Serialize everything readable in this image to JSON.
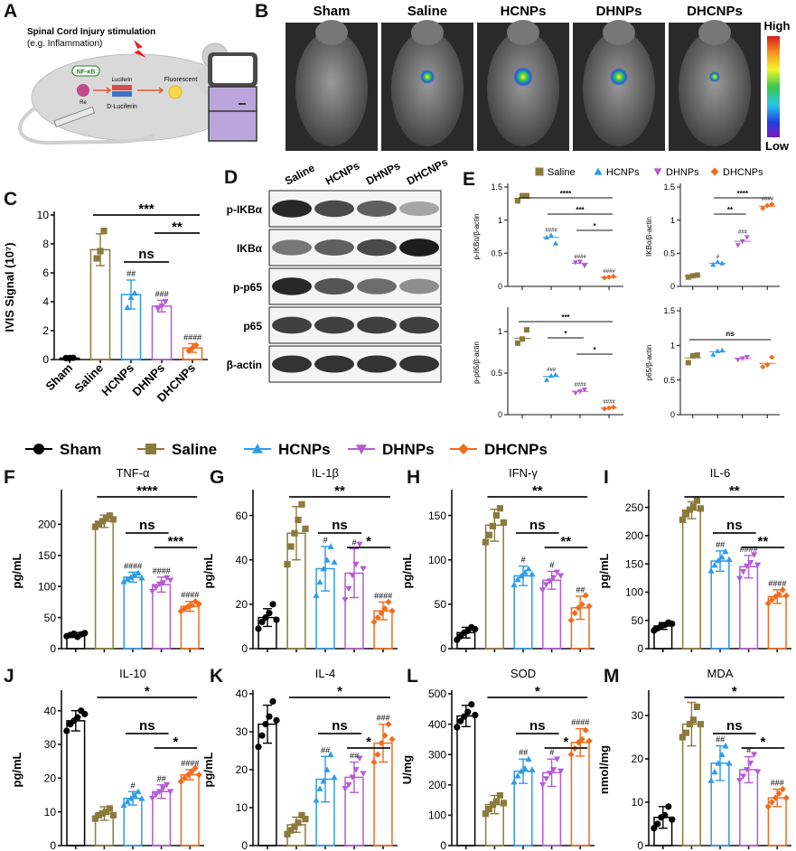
{
  "panel_letters": {
    "A": "A",
    "B": "B",
    "C": "C",
    "D": "D",
    "E": "E",
    "F": "F",
    "G": "G",
    "H": "H",
    "I": "I",
    "J": "J",
    "K": "K",
    "L": "L",
    "M": "M"
  },
  "groups": [
    "Sham",
    "Saline",
    "HCNPs",
    "DHNPs",
    "DHCNPs"
  ],
  "colors": {
    "Sham": "#000000",
    "Saline": "#8B7A3C",
    "HCNPs": "#2E9BE8",
    "DHNPs": "#B55BD6",
    "DHCNPs": "#F26B1D"
  },
  "schematic": {
    "line1": "Spinal Cord Injury stimulation",
    "line2": "(e.g. Inflammation)",
    "nfkb": "NF-κB",
    "re": "Re",
    "luciferin": "Luciferin",
    "d_luciferin": "D-Luciferin",
    "fluorescent": "Fluorescent"
  },
  "imaging": {
    "labels": [
      "Sham",
      "Saline",
      "HCNPs",
      "DHNPs",
      "DHCNPs"
    ],
    "scale_high": "High",
    "scale_low": "Low"
  },
  "western": {
    "lanes": [
      "Saline",
      "HCNPs",
      "DHNPs",
      "DHCNPs"
    ],
    "bands": [
      "p-IKBα",
      "IKBα",
      "p-p65",
      "p65",
      "β-actin"
    ]
  },
  "chart_data": [
    {
      "id": "C",
      "type": "bar",
      "ylabel": "IVIS Signal (10⁷)",
      "ylim": [
        0,
        10
      ],
      "yticks": [
        0,
        2,
        4,
        6,
        8,
        10
      ],
      "categories": [
        "Sham",
        "Saline",
        "HCNPs",
        "DHNPs",
        "DHCNPs"
      ],
      "values": [
        0.1,
        7.6,
        4.5,
        3.7,
        0.8
      ],
      "errors": [
        0.05,
        1.1,
        1.0,
        0.4,
        0.3
      ],
      "points": [
        [
          0.1,
          0.1,
          0.12
        ],
        [
          7.0,
          7.5,
          8.9
        ],
        [
          3.6,
          4.3,
          4.6
        ],
        [
          3.5,
          3.7,
          4.0
        ],
        [
          0.6,
          0.8,
          1.0
        ]
      ],
      "annot": [
        null,
        null,
        "##",
        "###",
        "####"
      ],
      "brackets": [
        {
          "from": 3,
          "to": 4,
          "label": "**"
        },
        {
          "from": 1,
          "to": 4,
          "label": "***"
        },
        {
          "from": 2,
          "to": 3,
          "label": "ns"
        }
      ]
    },
    {
      "id": "E1",
      "type": "scatter",
      "ylabel": "p-IKBα/β-actin",
      "ylim": [
        0,
        1.5
      ],
      "yticks": [
        0,
        0.5,
        1,
        1.5
      ],
      "categories": [
        "Saline",
        "HCNPs",
        "DHNPs",
        "DHCNPs"
      ],
      "values": [
        1.33,
        0.74,
        0.35,
        0.14
      ],
      "points": [
        [
          1.29,
          1.37,
          1.37
        ],
        [
          0.74,
          0.77,
          0.65
        ],
        [
          0.36,
          0.37,
          0.31
        ],
        [
          0.13,
          0.14,
          0.15
        ]
      ],
      "annot": [
        null,
        "####",
        "####",
        "####"
      ],
      "brackets": [
        {
          "from": 2,
          "to": 3,
          "label": "*"
        },
        {
          "from": 1,
          "to": 3,
          "label": "***"
        },
        {
          "from": 0,
          "to": 3,
          "label": "****"
        }
      ]
    },
    {
      "id": "E2",
      "type": "scatter",
      "ylabel": "IKBα/β-actin",
      "ylim": [
        0,
        1.5
      ],
      "yticks": [
        0,
        0.5,
        1,
        1.5
      ],
      "categories": [
        "Saline",
        "HCNPs",
        "DHNPs",
        "DHCNPs"
      ],
      "values": [
        0.16,
        0.35,
        0.68,
        1.21
      ],
      "points": [
        [
          0.14,
          0.16,
          0.17
        ],
        [
          0.33,
          0.37,
          0.35
        ],
        [
          0.62,
          0.68,
          0.74
        ],
        [
          1.18,
          1.22,
          1.24
        ]
      ],
      "annot": [
        null,
        "#",
        "###",
        "####"
      ],
      "brackets": [
        {
          "from": 1,
          "to": 2,
          "label": "**"
        },
        {
          "from": 1,
          "to": 3,
          "label": "****"
        }
      ]
    },
    {
      "id": "E3",
      "type": "scatter",
      "ylabel": "p-p65/β-actin",
      "ylim": [
        0,
        1.25
      ],
      "yticks": [
        0,
        0.5,
        1.0
      ],
      "categories": [
        "Saline",
        "HCNPs",
        "DHNPs",
        "DHCNPs"
      ],
      "values": [
        0.92,
        0.46,
        0.28,
        0.08
      ],
      "points": [
        [
          0.86,
          0.91,
          1.02
        ],
        [
          0.42,
          0.47,
          0.48
        ],
        [
          0.26,
          0.28,
          0.3
        ],
        [
          0.07,
          0.08,
          0.09
        ]
      ],
      "annot": [
        null,
        "###",
        "####",
        "####"
      ],
      "brackets": [
        {
          "from": 2,
          "to": 3,
          "label": "*"
        },
        {
          "from": 1,
          "to": 2,
          "label": "*"
        },
        {
          "from": 0,
          "to": 3,
          "label": "***"
        }
      ]
    },
    {
      "id": "E4",
      "type": "scatter",
      "ylabel": "p65/β-actin",
      "ylim": [
        0,
        1.5
      ],
      "yticks": [
        0,
        0.5,
        1.0,
        1.5
      ],
      "categories": [
        "Saline",
        "HCNPs",
        "DHNPs",
        "DHCNPs"
      ],
      "values": [
        0.82,
        0.91,
        0.81,
        0.74
      ],
      "points": [
        [
          0.75,
          0.85,
          0.86
        ],
        [
          0.87,
          0.92,
          0.93
        ],
        [
          0.79,
          0.81,
          0.83
        ],
        [
          0.69,
          0.72,
          0.83
        ]
      ],
      "annot": [
        null,
        null,
        null,
        null
      ],
      "brackets": [
        {
          "from": 0,
          "to": 3,
          "label": "ns"
        }
      ]
    },
    {
      "id": "F",
      "type": "bar",
      "title": "TNF-α",
      "ylabel": "pg/mL",
      "ylim": [
        0,
        250
      ],
      "yticks": [
        0,
        50,
        100,
        150,
        200
      ],
      "categories": [
        "Sham",
        "Saline",
        "HCNPs",
        "DHNPs",
        "DHCNPs"
      ],
      "values": [
        22,
        205,
        115,
        103,
        68
      ],
      "errors": [
        4,
        10,
        8,
        12,
        8
      ],
      "points": [
        [
          20,
          22,
          24,
          19,
          23,
          25
        ],
        [
          196,
          200,
          205,
          210,
          214,
          208
        ],
        [
          108,
          112,
          115,
          118,
          122,
          114
        ],
        [
          92,
          98,
          104,
          106,
          114,
          110
        ],
        [
          60,
          64,
          68,
          70,
          76,
          72
        ]
      ],
      "annot": [
        null,
        null,
        "####",
        "####",
        "####"
      ],
      "brackets": [
        {
          "from": 3,
          "to": 4,
          "label": "***"
        },
        {
          "from": 1,
          "to": 4,
          "label": "****"
        },
        {
          "from": 2,
          "to": 3,
          "label": "ns"
        }
      ]
    },
    {
      "id": "G",
      "type": "bar",
      "title": "IL-1β",
      "ylabel": "pg/mL",
      "ylim": [
        0,
        70
      ],
      "yticks": [
        0,
        20,
        40,
        60
      ],
      "categories": [
        "Sham",
        "Saline",
        "HCNPs",
        "DHNPs",
        "DHCNPs"
      ],
      "values": [
        14,
        52,
        36,
        34,
        17
      ],
      "errors": [
        4,
        12,
        10,
        11,
        4
      ],
      "points": [
        [
          9,
          12,
          14,
          16,
          20,
          13
        ],
        [
          38,
          46,
          52,
          58,
          65,
          54
        ],
        [
          24,
          30,
          36,
          40,
          46,
          39
        ],
        [
          22,
          27,
          33,
          38,
          47,
          36
        ],
        [
          12,
          14,
          16,
          18,
          21,
          17
        ]
      ],
      "annot": [
        null,
        null,
        "#",
        "#",
        "####"
      ],
      "brackets": [
        {
          "from": 3,
          "to": 4,
          "label": "*"
        },
        {
          "from": 1,
          "to": 4,
          "label": "**"
        },
        {
          "from": 2,
          "to": 3,
          "label": "ns"
        }
      ]
    },
    {
      "id": "H",
      "type": "bar",
      "title": "IFN-γ",
      "ylabel": "pg/mL",
      "ylim": [
        0,
        175
      ],
      "yticks": [
        0,
        50,
        100,
        150
      ],
      "categories": [
        "Sham",
        "Saline",
        "HCNPs",
        "DHNPs",
        "DHCNPs"
      ],
      "values": [
        18,
        139,
        82,
        77,
        46
      ],
      "errors": [
        6,
        18,
        11,
        10,
        13
      ],
      "points": [
        [
          10,
          14,
          18,
          20,
          24,
          22
        ],
        [
          120,
          128,
          138,
          150,
          158,
          142
        ],
        [
          72,
          78,
          82,
          86,
          90,
          84
        ],
        [
          66,
          72,
          76,
          80,
          86,
          82
        ],
        [
          32,
          40,
          46,
          50,
          60,
          48
        ]
      ],
      "annot": [
        null,
        null,
        "#",
        "#",
        "##"
      ],
      "brackets": [
        {
          "from": 3,
          "to": 4,
          "label": "**"
        },
        {
          "from": 1,
          "to": 4,
          "label": "**"
        },
        {
          "from": 2,
          "to": 3,
          "label": "ns"
        }
      ]
    },
    {
      "id": "I",
      "type": "bar",
      "title": "IL-6",
      "ylabel": "pg/mL",
      "ylim": [
        0,
        275
      ],
      "yticks": [
        0,
        50,
        100,
        150,
        200,
        250
      ],
      "categories": [
        "Sham",
        "Saline",
        "HCNPs",
        "DHNPs",
        "DHCNPs"
      ],
      "values": [
        40,
        245,
        155,
        145,
        92
      ],
      "errors": [
        6,
        15,
        18,
        20,
        12
      ],
      "points": [
        [
          32,
          36,
          40,
          42,
          46,
          44
        ],
        [
          228,
          238,
          246,
          252,
          262,
          248
        ],
        [
          138,
          148,
          156,
          162,
          172,
          158
        ],
        [
          124,
          136,
          146,
          152,
          166,
          148
        ],
        [
          80,
          86,
          92,
          96,
          104,
          94
        ]
      ],
      "annot": [
        null,
        null,
        "##",
        "####",
        "####"
      ],
      "brackets": [
        {
          "from": 3,
          "to": 4,
          "label": "**"
        },
        {
          "from": 1,
          "to": 4,
          "label": "**"
        },
        {
          "from": 2,
          "to": 3,
          "label": "ns"
        }
      ]
    },
    {
      "id": "J",
      "type": "bar",
      "title": "IL-10",
      "ylabel": "pg/mL",
      "ylim": [
        0,
        45
      ],
      "yticks": [
        0,
        10,
        20,
        30,
        40
      ],
      "categories": [
        "Sham",
        "Saline",
        "HCNPs",
        "DHNPs",
        "DHCNPs"
      ],
      "values": [
        37,
        9.5,
        14,
        16,
        21
      ],
      "errors": [
        3,
        2,
        2,
        2,
        1.5
      ],
      "points": [
        [
          34,
          36,
          37,
          38,
          40,
          39
        ],
        [
          8,
          9,
          9.5,
          10,
          11,
          9
        ],
        [
          12,
          13,
          14,
          15,
          16,
          14
        ],
        [
          14,
          15,
          16,
          17,
          18,
          16
        ],
        [
          19,
          20,
          21,
          22,
          23,
          21
        ]
      ],
      "annot": [
        null,
        null,
        "#",
        "##",
        "####"
      ],
      "brackets": [
        {
          "from": 3,
          "to": 4,
          "label": "*"
        },
        {
          "from": 1,
          "to": 4,
          "label": "*"
        },
        {
          "from": 2,
          "to": 3,
          "label": "ns"
        }
      ]
    },
    {
      "id": "K",
      "type": "bar",
      "title": "IL-4",
      "ylabel": "pg/mL",
      "ylim": [
        0,
        40
      ],
      "yticks": [
        0,
        10,
        20,
        30,
        40
      ],
      "categories": [
        "Sham",
        "Saline",
        "HCNPs",
        "DHNPs",
        "DHCNPs"
      ],
      "values": [
        32,
        5.5,
        17.5,
        18,
        27
      ],
      "errors": [
        5,
        2,
        6,
        4,
        5
      ],
      "points": [
        [
          26,
          29,
          32,
          34,
          38,
          33
        ],
        [
          3,
          4,
          5,
          6,
          8,
          7
        ],
        [
          12,
          15,
          17,
          20,
          24,
          18
        ],
        [
          15,
          16,
          18,
          20,
          23,
          19
        ],
        [
          22,
          24,
          27,
          29,
          32,
          28
        ]
      ],
      "annot": [
        null,
        null,
        "##",
        "##",
        "###"
      ],
      "brackets": [
        {
          "from": 3,
          "to": 4,
          "label": "*"
        },
        {
          "from": 1,
          "to": 4,
          "label": "*"
        },
        {
          "from": 2,
          "to": 3,
          "label": "ns"
        }
      ]
    },
    {
      "id": "L",
      "type": "bar",
      "title": "SOD",
      "ylabel": "U/mg",
      "ylim": [
        0,
        500
      ],
      "yticks": [
        0,
        100,
        200,
        300,
        400,
        500
      ],
      "categories": [
        "Sham",
        "Saline",
        "HCNPs",
        "DHNPs",
        "DHCNPs"
      ],
      "values": [
        427,
        135,
        245,
        240,
        340
      ],
      "errors": [
        35,
        30,
        40,
        45,
        45
      ],
      "points": [
        [
          390,
          410,
          425,
          440,
          465,
          430
        ],
        [
          105,
          120,
          135,
          145,
          165,
          140
        ],
        [
          210,
          230,
          245,
          255,
          285,
          250
        ],
        [
          200,
          220,
          238,
          250,
          285,
          245
        ],
        [
          300,
          320,
          340,
          350,
          380,
          345
        ]
      ],
      "annot": [
        null,
        null,
        "##",
        "#",
        "####"
      ],
      "brackets": [
        {
          "from": 3,
          "to": 4,
          "label": "*"
        },
        {
          "from": 1,
          "to": 4,
          "label": "*"
        },
        {
          "from": 2,
          "to": 3,
          "label": "ns"
        }
      ]
    },
    {
      "id": "M",
      "type": "bar",
      "title": "MDA",
      "ylabel": "nmol/mg",
      "ylim": [
        0,
        35
      ],
      "yticks": [
        0,
        10,
        20,
        30
      ],
      "categories": [
        "Sham",
        "Saline",
        "HCNPs",
        "DHNPs",
        "DHCNPs"
      ],
      "values": [
        6.5,
        28,
        19,
        17.5,
        11
      ],
      "errors": [
        2.5,
        5,
        4,
        3,
        2
      ],
      "points": [
        [
          4,
          5,
          6.5,
          7,
          9,
          6
        ],
        [
          25,
          26,
          28,
          29,
          32,
          28
        ],
        [
          15,
          17,
          19,
          21,
          23,
          19
        ],
        [
          15,
          16,
          17.5,
          19,
          21,
          17
        ],
        [
          9,
          10,
          11,
          12,
          13,
          11
        ]
      ],
      "annot": [
        null,
        null,
        "##",
        "#",
        "###"
      ],
      "brackets": [
        {
          "from": 3,
          "to": 4,
          "label": "*"
        },
        {
          "from": 1,
          "to": 4,
          "label": "*"
        },
        {
          "from": 2,
          "to": 3,
          "label": "ns"
        }
      ]
    }
  ]
}
